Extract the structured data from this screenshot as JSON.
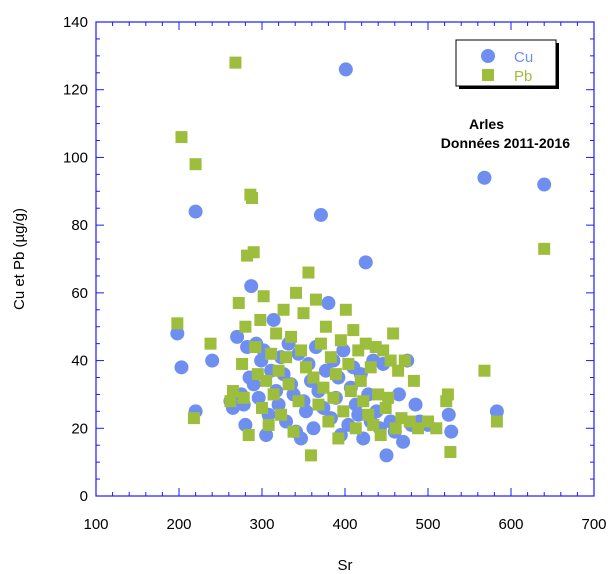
{
  "chart_data": {
    "type": "scatter",
    "title": "",
    "xlabel": "Sr",
    "ylabel": "Cu et Pb (µg/g)",
    "xlim": [
      100,
      700
    ],
    "ylim": [
      0,
      140
    ],
    "xticks": [
      "100",
      "200",
      "300",
      "400",
      "500",
      "600",
      "700"
    ],
    "yticks": [
      "0",
      "20",
      "40",
      "60",
      "80",
      "100",
      "120",
      "140"
    ],
    "grid": false,
    "legend_position": "top-right",
    "annotation_lines": [
      "Arles",
      "Données 2011-2016"
    ],
    "series": [
      {
        "name": "Cu",
        "marker": "circle",
        "color": "#6e8ff0",
        "points": [
          [
            198,
            48
          ],
          [
            203,
            38
          ],
          [
            220,
            84
          ],
          [
            220,
            25
          ],
          [
            240,
            40
          ],
          [
            262,
            28
          ],
          [
            265,
            26
          ],
          [
            270,
            47
          ],
          [
            275,
            30
          ],
          [
            278,
            27
          ],
          [
            280,
            21
          ],
          [
            282,
            44
          ],
          [
            285,
            35
          ],
          [
            287,
            62
          ],
          [
            290,
            33
          ],
          [
            293,
            45
          ],
          [
            296,
            29
          ],
          [
            299,
            40
          ],
          [
            302,
            43
          ],
          [
            305,
            18
          ],
          [
            308,
            24
          ],
          [
            311,
            37
          ],
          [
            314,
            52
          ],
          [
            317,
            31
          ],
          [
            320,
            27
          ],
          [
            323,
            41
          ],
          [
            326,
            36
          ],
          [
            329,
            22
          ],
          [
            332,
            45
          ],
          [
            335,
            33
          ],
          [
            338,
            30
          ],
          [
            341,
            19
          ],
          [
            344,
            42
          ],
          [
            347,
            17
          ],
          [
            350,
            28
          ],
          [
            353,
            25
          ],
          [
            356,
            39
          ],
          [
            359,
            34
          ],
          [
            362,
            20
          ],
          [
            365,
            44
          ],
          [
            368,
            31
          ],
          [
            371,
            83
          ],
          [
            374,
            26
          ],
          [
            377,
            37
          ],
          [
            380,
            57
          ],
          [
            383,
            23
          ],
          [
            386,
            40
          ],
          [
            389,
            29
          ],
          [
            392,
            35
          ],
          [
            395,
            18
          ],
          [
            398,
            43
          ],
          [
            401,
            126
          ],
          [
            404,
            21
          ],
          [
            407,
            32
          ],
          [
            410,
            38
          ],
          [
            413,
            27
          ],
          [
            416,
            24
          ],
          [
            419,
            36
          ],
          [
            422,
            17
          ],
          [
            425,
            69
          ],
          [
            428,
            30
          ],
          [
            431,
            22
          ],
          [
            434,
            40
          ],
          [
            438,
            25
          ],
          [
            442,
            20
          ],
          [
            446,
            39
          ],
          [
            450,
            12
          ],
          [
            455,
            22
          ],
          [
            460,
            19
          ],
          [
            465,
            30
          ],
          [
            470,
            16
          ],
          [
            475,
            40
          ],
          [
            480,
            21
          ],
          [
            485,
            27
          ],
          [
            490,
            22
          ],
          [
            500,
            21
          ],
          [
            525,
            24
          ],
          [
            528,
            19
          ],
          [
            568,
            94
          ],
          [
            583,
            25
          ],
          [
            640,
            92
          ]
        ]
      },
      {
        "name": "Pb",
        "marker": "square",
        "color": "#9dbe3c",
        "points": [
          [
            198,
            51
          ],
          [
            203,
            106
          ],
          [
            218,
            23
          ],
          [
            220,
            98
          ],
          [
            238,
            45
          ],
          [
            262,
            28
          ],
          [
            265,
            31
          ],
          [
            268,
            128
          ],
          [
            272,
            57
          ],
          [
            276,
            39
          ],
          [
            278,
            29
          ],
          [
            280,
            50
          ],
          [
            282,
            71
          ],
          [
            284,
            18
          ],
          [
            286,
            89
          ],
          [
            288,
            88
          ],
          [
            290,
            72
          ],
          [
            292,
            44
          ],
          [
            295,
            36
          ],
          [
            298,
            52
          ],
          [
            300,
            26
          ],
          [
            302,
            59
          ],
          [
            305,
            34
          ],
          [
            308,
            21
          ],
          [
            311,
            42
          ],
          [
            314,
            30
          ],
          [
            317,
            48
          ],
          [
            320,
            37
          ],
          [
            323,
            24
          ],
          [
            326,
            55
          ],
          [
            329,
            41
          ],
          [
            332,
            33
          ],
          [
            335,
            47
          ],
          [
            338,
            19
          ],
          [
            341,
            60
          ],
          [
            344,
            28
          ],
          [
            347,
            43
          ],
          [
            350,
            54
          ],
          [
            353,
            38
          ],
          [
            356,
            66
          ],
          [
            359,
            12
          ],
          [
            362,
            35
          ],
          [
            365,
            58
          ],
          [
            368,
            27
          ],
          [
            371,
            45
          ],
          [
            374,
            32
          ],
          [
            377,
            50
          ],
          [
            380,
            22
          ],
          [
            383,
            41
          ],
          [
            386,
            29
          ],
          [
            389,
            36
          ],
          [
            392,
            17
          ],
          [
            395,
            46
          ],
          [
            398,
            25
          ],
          [
            401,
            55
          ],
          [
            404,
            39
          ],
          [
            407,
            31
          ],
          [
            410,
            49
          ],
          [
            413,
            20
          ],
          [
            416,
            43
          ],
          [
            419,
            34
          ],
          [
            422,
            28
          ],
          [
            425,
            45
          ],
          [
            428,
            24
          ],
          [
            431,
            38
          ],
          [
            434,
            21
          ],
          [
            437,
            44
          ],
          [
            440,
            30
          ],
          [
            443,
            18
          ],
          [
            446,
            43
          ],
          [
            449,
            26
          ],
          [
            452,
            29
          ],
          [
            455,
            40
          ],
          [
            458,
            48
          ],
          [
            461,
            20
          ],
          [
            464,
            37
          ],
          [
            468,
            23
          ],
          [
            472,
            40
          ],
          [
            478,
            22
          ],
          [
            483,
            34
          ],
          [
            488,
            20
          ],
          [
            500,
            22
          ],
          [
            510,
            20
          ],
          [
            522,
            28
          ],
          [
            524,
            30
          ],
          [
            527,
            13
          ],
          [
            568,
            37
          ],
          [
            583,
            22
          ],
          [
            640,
            73
          ]
        ]
      }
    ]
  }
}
